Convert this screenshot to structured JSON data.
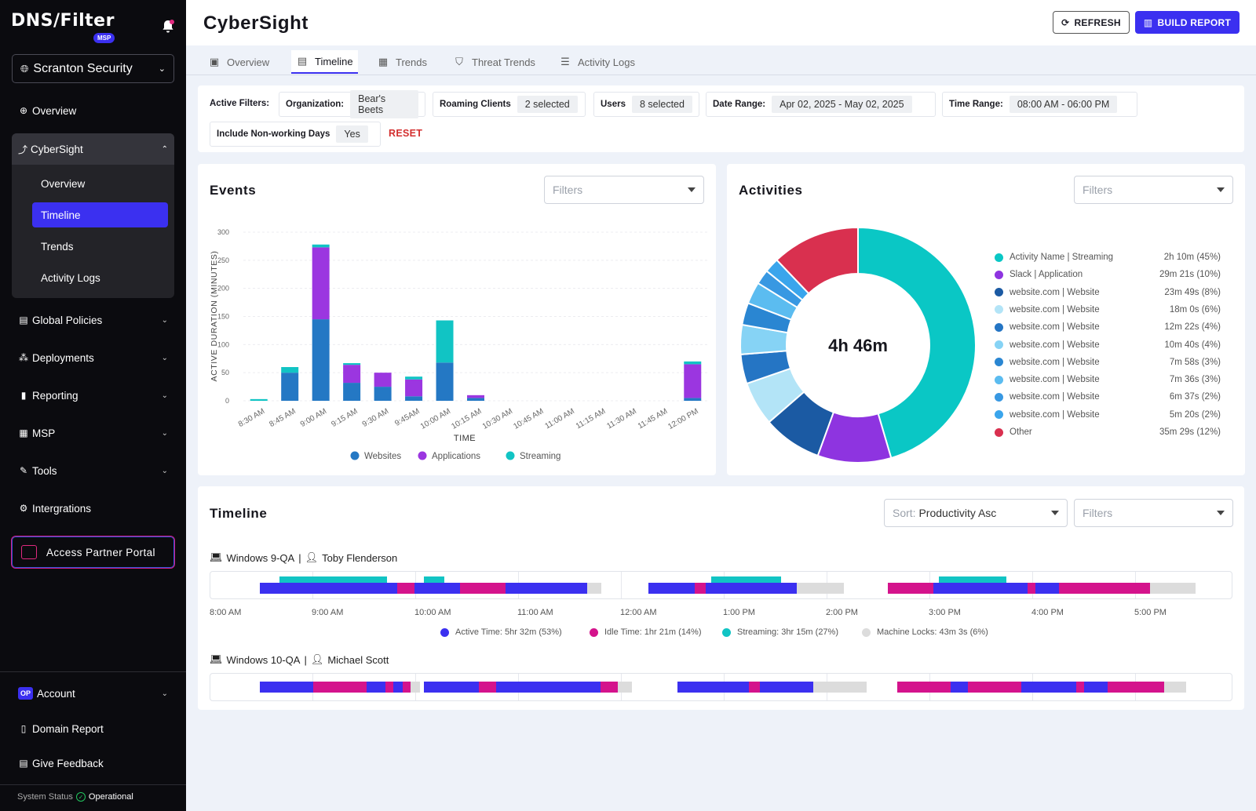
{
  "brand": {
    "logo": "DNS/Filter",
    "badge": "MSP"
  },
  "sidebar": {
    "org": "Scranton Security",
    "items": [
      {
        "label": "Overview",
        "icon": "globe-icon"
      },
      {
        "label": "CyberSight",
        "icon": "trend-icon"
      },
      {
        "label": "Global Policies",
        "icon": "policy-icon"
      },
      {
        "label": "Deployments",
        "icon": "deploy-icon"
      },
      {
        "label": "Reporting",
        "icon": "bar-chart-icon"
      },
      {
        "label": "MSP",
        "icon": "building-icon"
      },
      {
        "label": "Tools",
        "icon": "wrench-icon"
      },
      {
        "label": "Intergrations",
        "icon": "gears-icon"
      }
    ],
    "cybersight_sub": [
      "Overview",
      "Timeline",
      "Trends",
      "Activity Logs"
    ],
    "partner_portal": "Access Partner Portal",
    "account": {
      "badge": "OP",
      "label": "Account"
    },
    "domain_report": "Domain Report",
    "feedback": "Give Feedback",
    "status_label": "System Status",
    "status_value": "Operational"
  },
  "header": {
    "title": "CyberSight",
    "refresh": "REFRESH",
    "build": "BUILD REPORT"
  },
  "tabs": [
    "Overview",
    "Timeline",
    "Trends",
    "Threat Trends",
    "Activity Logs"
  ],
  "filters": {
    "active_label": "Active Filters:",
    "organization": {
      "k": "Organization:",
      "v": "Bear's Beets"
    },
    "roaming": {
      "k": "Roaming Clients",
      "v": "2 selected"
    },
    "users": {
      "k": "Users",
      "v": "8 selected"
    },
    "date": {
      "k": "Date Range:",
      "v": "Apr 02, 2025 - May 02, 2025"
    },
    "time": {
      "k": "Time Range:",
      "v": "08:00 AM - 06:00 PM"
    },
    "nonworking": {
      "k": "Include Non-working Days",
      "v": "Yes"
    },
    "reset": "RESET"
  },
  "events": {
    "title": "Events",
    "filters_placeholder": "Filters"
  },
  "activities": {
    "title": "Activities",
    "filters_placeholder": "Filters",
    "total": "4h 46m"
  },
  "timeline": {
    "title": "Timeline",
    "sort_label": "Sort:",
    "sort_value": "Productivity Asc",
    "filters_placeholder": "Filters",
    "rows": [
      {
        "device": "Windows 9-QA",
        "user": "Toby Flenderson"
      },
      {
        "device": "Windows 10-QA",
        "user": "Michael Scott"
      }
    ],
    "hours": [
      "8:00 AM",
      "9:00 AM",
      "10:00 AM",
      "11:00 AM",
      "12:00 AM",
      "1:00 PM",
      "2:00 PM",
      "3:00 PM",
      "4:00 PM",
      "5:00 PM"
    ],
    "legend": [
      {
        "label": "Active Time: 5hr 32m (53%)",
        "color": "#3b30f0"
      },
      {
        "label": "Idle Time: 1hr 21m (14%)",
        "color": "#d4138c"
      },
      {
        "label": "Streaming: 3hr 15m (27%)",
        "color": "#11c4c4"
      },
      {
        "label": "Machine Locks: 43m 3s (6%)",
        "color": "#dcdcdc"
      }
    ]
  },
  "chart_data": [
    {
      "type": "bar",
      "title": "Events",
      "xlabel": "TIME",
      "ylabel": "ACTIVE DURATION (MINUTES)",
      "ylim": [
        0,
        300
      ],
      "yticks": [
        0,
        50,
        100,
        150,
        200,
        250,
        300
      ],
      "categories": [
        "8:30 AM",
        "8:45 AM",
        "9:00 AM",
        "9:15 AM",
        "9:30 AM",
        "9:45AM",
        "10:00 AM",
        "10:15 AM",
        "10:30 AM",
        "10:45 AM",
        "11:00 AM",
        "11:15 AM",
        "11:30 AM",
        "11:45 AM",
        "12:00 PM"
      ],
      "series": [
        {
          "name": "Websites",
          "color": "#2478c4",
          "values": [
            0,
            50,
            145,
            32,
            25,
            8,
            68,
            5,
            0,
            0,
            0,
            0,
            0,
            0,
            5
          ]
        },
        {
          "name": "Applications",
          "color": "#9b36e0",
          "values": [
            0,
            0,
            128,
            32,
            25,
            30,
            0,
            5,
            0,
            0,
            0,
            0,
            0,
            0,
            60
          ]
        },
        {
          "name": "Streaming",
          "color": "#11c4c4",
          "values": [
            3,
            10,
            5,
            3,
            0,
            5,
            75,
            0,
            0,
            0,
            0,
            0,
            0,
            0,
            5
          ]
        }
      ],
      "legend": "bottom",
      "grid": true
    },
    {
      "type": "pie",
      "title": "Activities",
      "center_label": "4h 46m",
      "legend": "right",
      "slices": [
        {
          "label": "Activity Name | Streaming",
          "value_text": "2h 10m (45%)",
          "pct": 45,
          "color": "#0ac7c5"
        },
        {
          "label": "Slack | Application",
          "value_text": "29m 21s (10%)",
          "pct": 10,
          "color": "#8e34e0"
        },
        {
          "label": "website.com | Website",
          "value_text": "23m 49s (8%)",
          "pct": 8,
          "color": "#1b5aa3"
        },
        {
          "label": "website.com | Website",
          "value_text": "18m 0s (6%)",
          "pct": 6,
          "color": "#b3e4f7"
        },
        {
          "label": "website.com | Website",
          "value_text": "12m 22s (4%)",
          "pct": 4,
          "color": "#2575c4"
        },
        {
          "label": "website.com | Website",
          "value_text": "10m 40s (4%)",
          "pct": 4,
          "color": "#86d3f5"
        },
        {
          "label": "website.com | Website",
          "value_text": "7m 58s (3%)",
          "pct": 3,
          "color": "#2a86d2"
        },
        {
          "label": "website.com | Website",
          "value_text": "7m 36s (3%)",
          "pct": 3,
          "color": "#5bbcf0"
        },
        {
          "label": "website.com | Website",
          "value_text": "6m 37s (2%)",
          "pct": 2,
          "color": "#3898e2"
        },
        {
          "label": "website.com | Website",
          "value_text": "5m 20s (2%)",
          "pct": 2,
          "color": "#3aa5ec"
        },
        {
          "label": "Other",
          "value_text": "35m 29s (12%)",
          "pct": 12,
          "color": "#d9304f"
        }
      ]
    }
  ]
}
